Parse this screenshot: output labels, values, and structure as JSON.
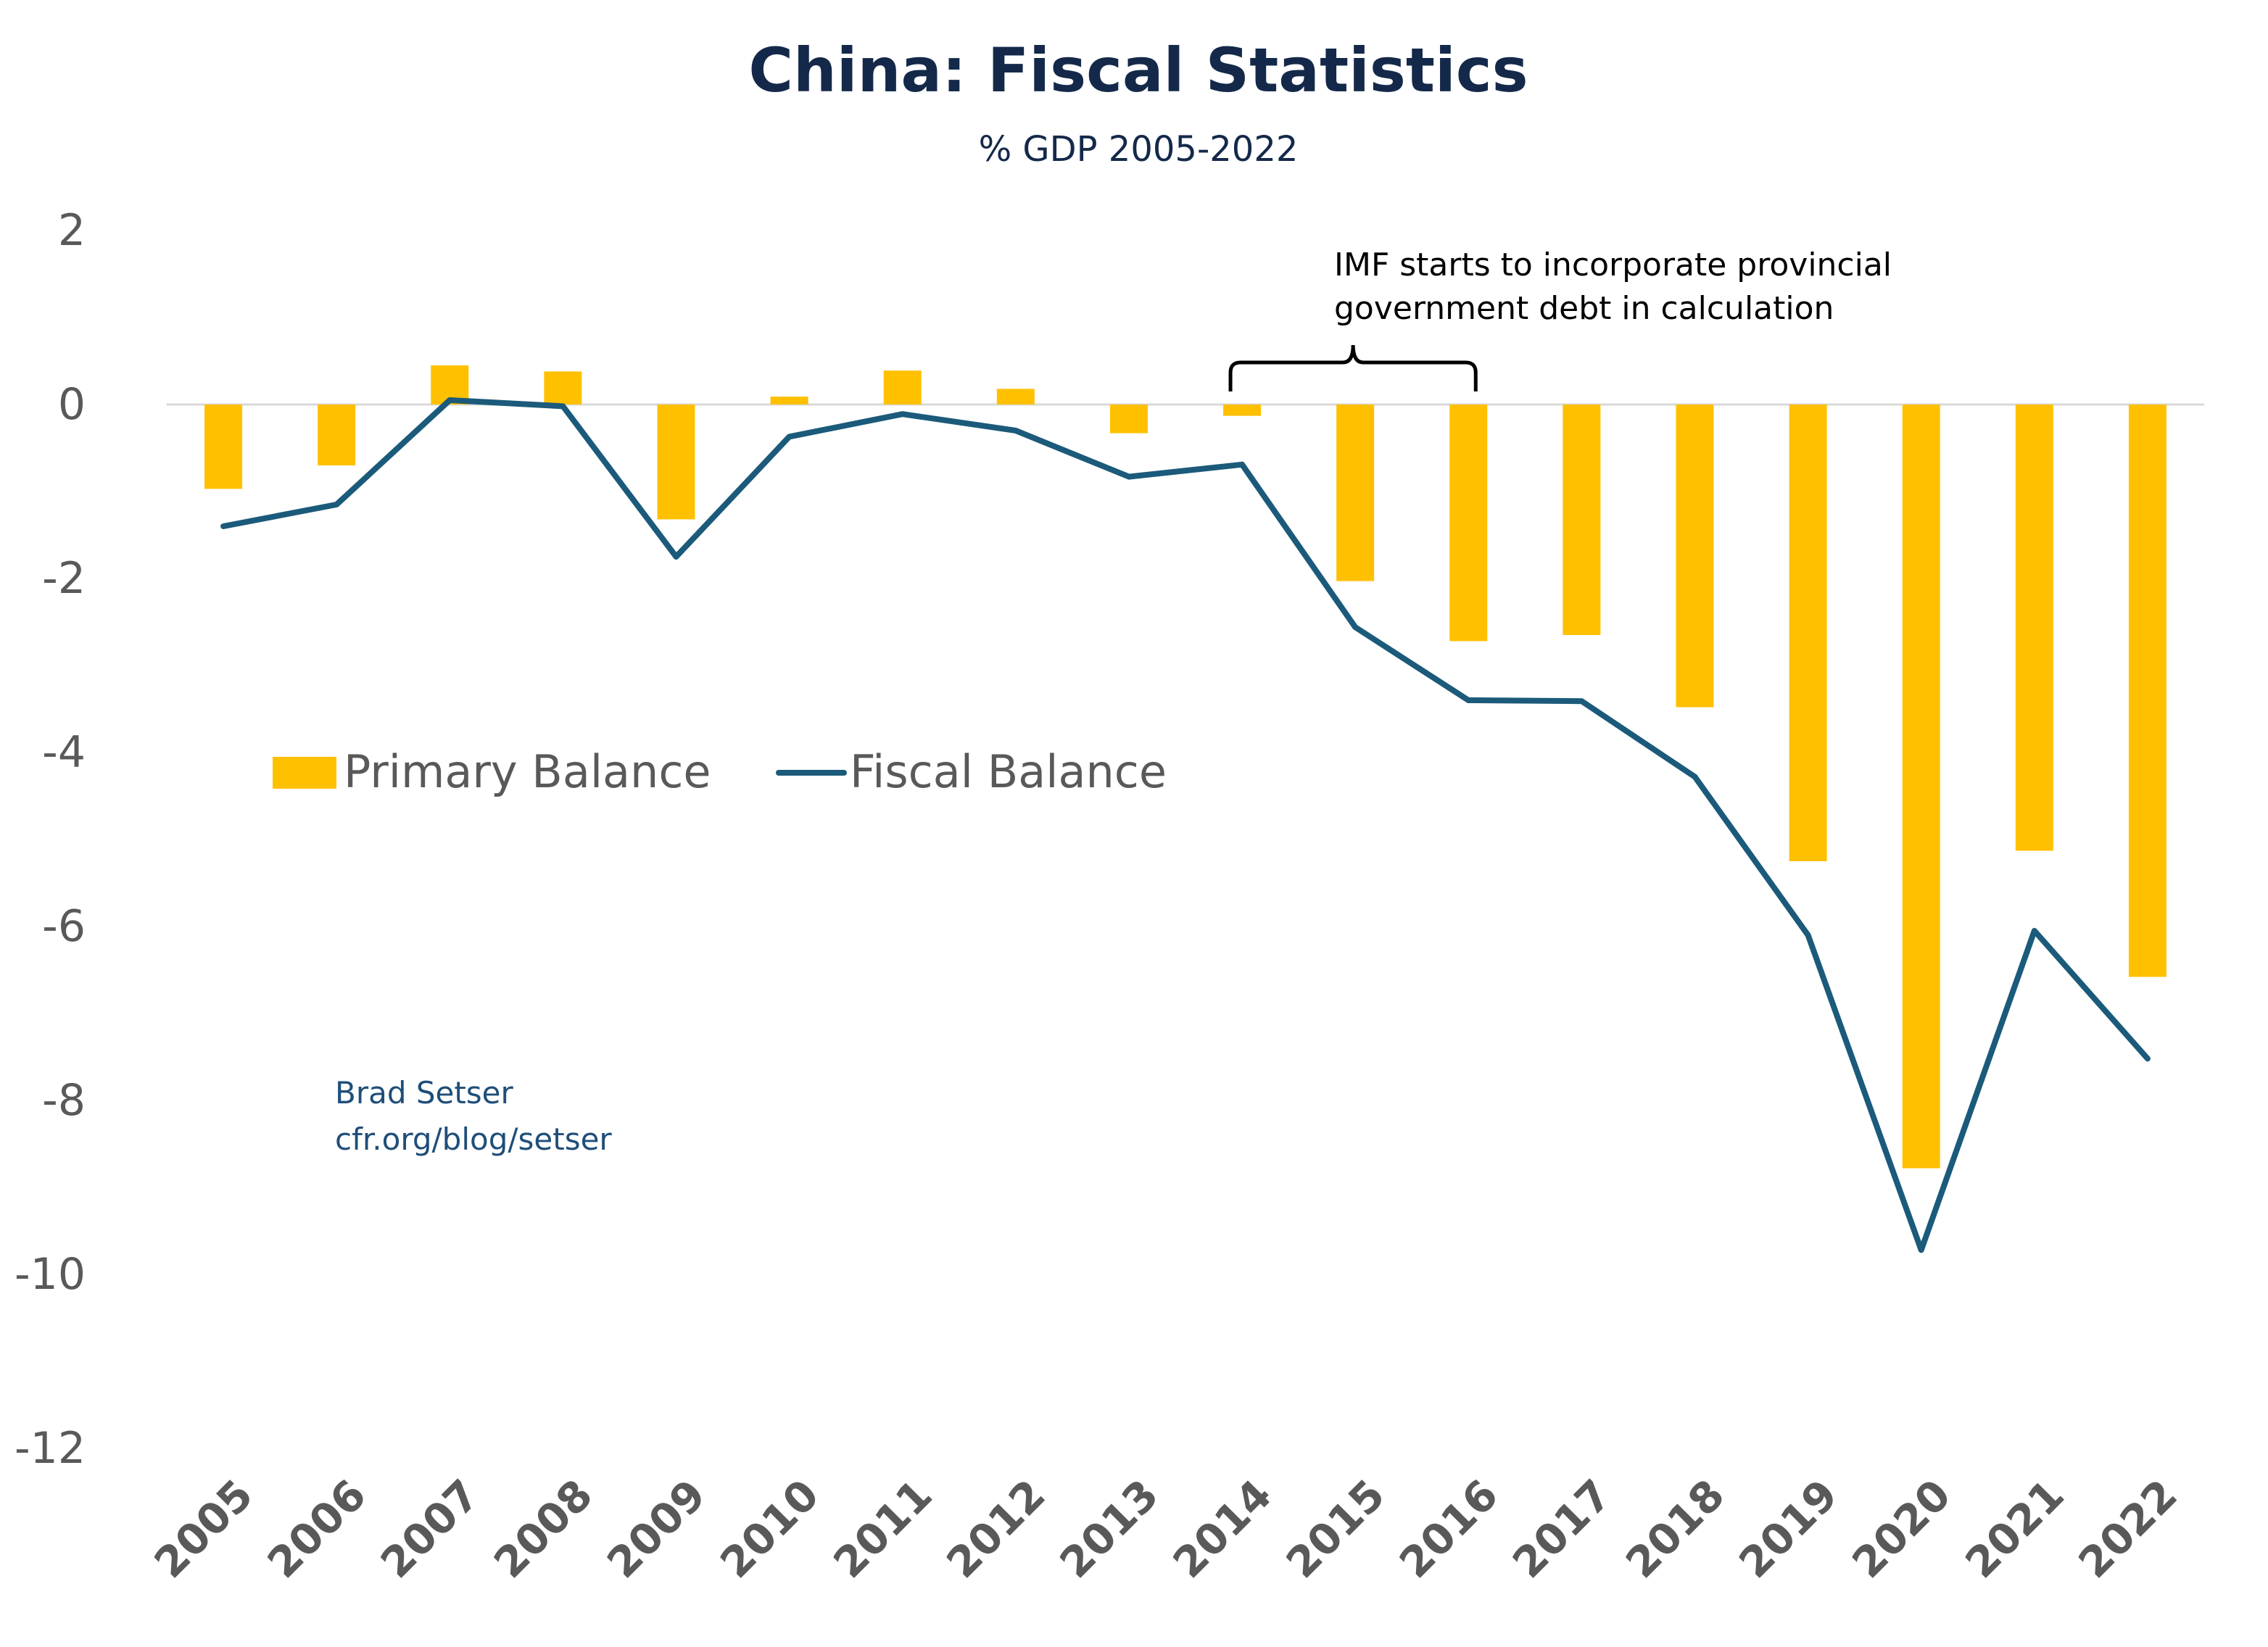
{
  "chart_data": {
    "type": "bar",
    "title": "China: Fiscal Statistics",
    "subtitle": "% GDP 2005-2022",
    "categories": [
      "2005",
      "2006",
      "2007",
      "2008",
      "2009",
      "2010",
      "2011",
      "2012",
      "2013",
      "2014",
      "2015",
      "2016",
      "2017",
      "2018",
      "2019",
      "2020",
      "2021",
      "2022"
    ],
    "series": [
      {
        "name": "Primary Balance",
        "type": "bar",
        "color": "#ffc000",
        "values": [
          -0.97,
          -0.7,
          0.45,
          0.38,
          -1.32,
          0.09,
          0.39,
          0.18,
          -0.33,
          -0.13,
          -2.03,
          -2.72,
          -2.65,
          -3.48,
          -5.25,
          -8.78,
          -5.13,
          -6.58
        ]
      },
      {
        "name": "Fiscal Balance",
        "type": "line",
        "color": "#1b5a7a",
        "values": [
          -1.4,
          -1.15,
          0.05,
          -0.02,
          -1.75,
          -0.37,
          -0.11,
          -0.3,
          -0.83,
          -0.69,
          -2.56,
          -3.4,
          -3.41,
          -4.28,
          -6.1,
          -9.72,
          -6.05,
          -7.52
        ]
      }
    ],
    "ylim": [
      -12,
      2
    ],
    "yticks": [
      "2",
      "0",
      "-2",
      "-4",
      "-6",
      "-8",
      "-10",
      "-12"
    ],
    "xlabel": "",
    "ylabel": "",
    "grid": false,
    "legend_position": "middle-left",
    "annotation": {
      "lines": [
        "IMF starts to incorporate provincial",
        "government debt in calculation"
      ],
      "span": [
        "2014",
        "2016"
      ]
    },
    "credit": [
      "Brad Setser",
      "cfr.org/blog/setser"
    ]
  }
}
